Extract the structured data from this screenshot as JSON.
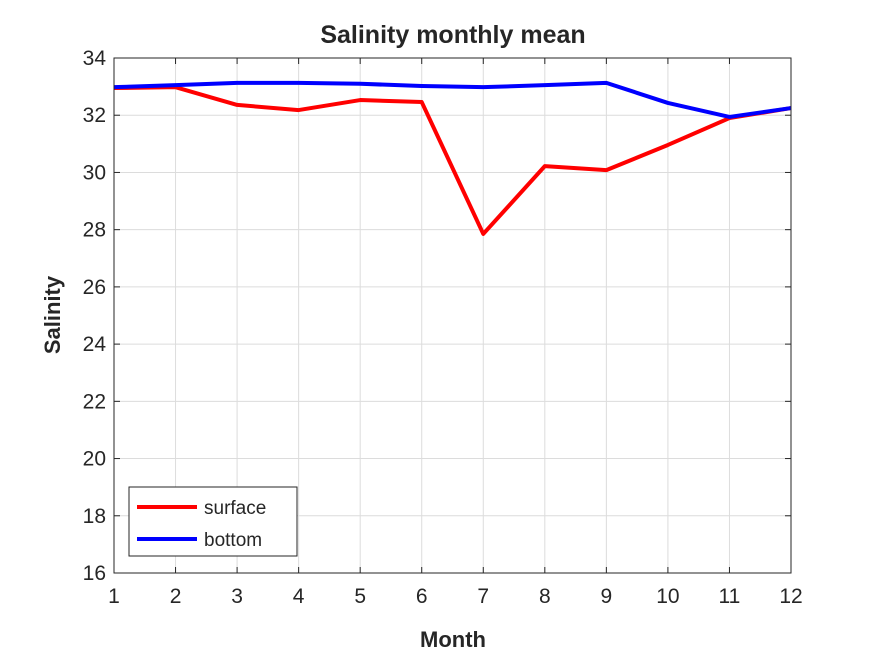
{
  "chart_data": {
    "type": "line",
    "title": "Salinity monthly mean",
    "xlabel": "Month",
    "ylabel": "Salinity",
    "xlim": [
      1,
      12
    ],
    "ylim": [
      16,
      34
    ],
    "xticks": [
      1,
      2,
      3,
      4,
      5,
      6,
      7,
      8,
      9,
      10,
      11,
      12
    ],
    "yticks": [
      16,
      18,
      20,
      22,
      24,
      26,
      28,
      30,
      32,
      34
    ],
    "grid": true,
    "legend_position": "bottom-left",
    "x": [
      1,
      2,
      3,
      4,
      5,
      6,
      7,
      8,
      9,
      10,
      11,
      12
    ],
    "series": [
      {
        "name": "surface",
        "color": "#ff0000",
        "values": [
          32.95,
          32.98,
          32.36,
          32.18,
          32.53,
          32.46,
          27.85,
          30.22,
          30.08,
          30.96,
          31.9,
          32.25
        ]
      },
      {
        "name": "bottom",
        "color": "#0000ff",
        "values": [
          32.98,
          33.05,
          33.13,
          33.13,
          33.1,
          33.02,
          32.98,
          33.05,
          33.13,
          32.43,
          31.94,
          32.25
        ]
      }
    ]
  }
}
